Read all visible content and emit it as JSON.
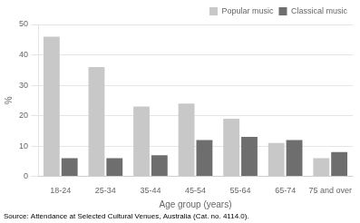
{
  "chart_data": {
    "type": "bar",
    "categories": [
      "18-24",
      "25-34",
      "35-44",
      "45-54",
      "55-64",
      "65-74",
      "75 and over"
    ],
    "series": [
      {
        "name": "Popular music",
        "color": "#c8c8c8",
        "values": [
          46,
          36,
          23,
          24,
          19,
          11,
          6
        ]
      },
      {
        "name": "Classical music",
        "color": "#6e6e6e",
        "values": [
          6,
          6,
          7,
          12,
          13,
          12,
          8
        ]
      }
    ],
    "xlabel": "Age group (years)",
    "ylabel": "%",
    "ylim": [
      0,
      50
    ],
    "yticks": [
      0,
      10,
      20,
      30,
      40,
      50
    ],
    "grid": true,
    "legend": "upper right",
    "annotations": [
      "Source: Attendance at Selected Cultural Venues, Australia (Cat. no. 4114.0)."
    ]
  }
}
